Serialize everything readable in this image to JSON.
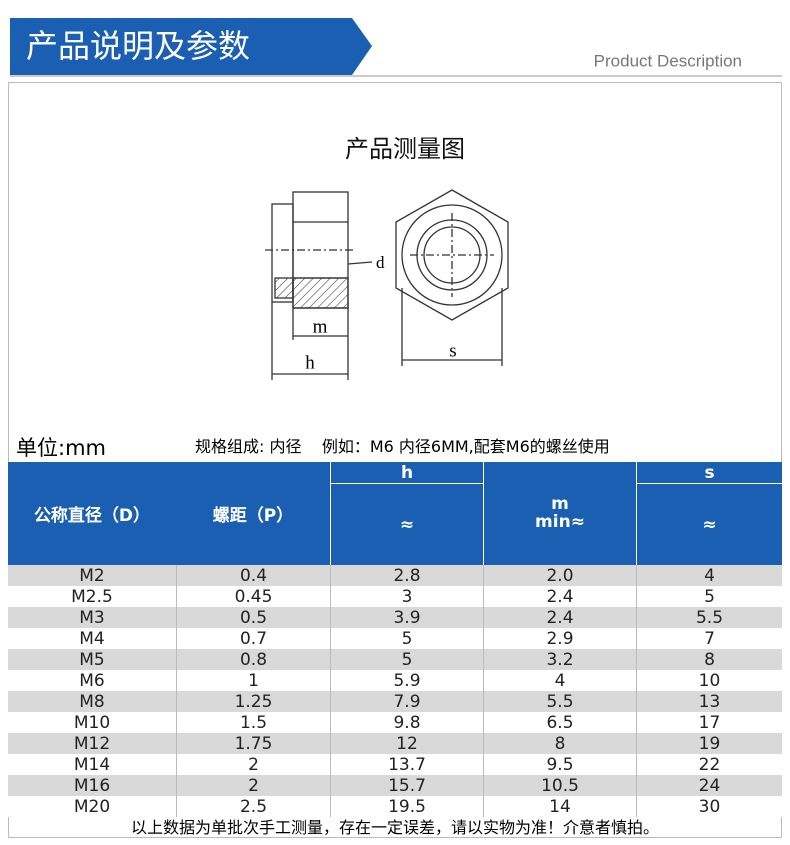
{
  "header": {
    "title": "产品说明及参数",
    "subtitle": "Product Description"
  },
  "diagram": {
    "title": "产品测量图",
    "labels": {
      "d": "d",
      "m": "m",
      "h": "h",
      "s": "s"
    }
  },
  "unit": "单位:mm",
  "spec": "规格组成: 内径    例如：M6 内径6MM,配套M6的螺丝使用",
  "table": {
    "headers": {
      "d": "公称直径（D）",
      "p": "螺距（P）",
      "h": "h",
      "h_sub": "≈",
      "m": "m",
      "m_sub": "min≈",
      "s": "s",
      "s_sub": "≈"
    },
    "rows": [
      [
        "M2",
        "0.4",
        "2.8",
        "2.0",
        "4"
      ],
      [
        "M2.5",
        "0.45",
        "3",
        "2.4",
        "5"
      ],
      [
        "M3",
        "0.5",
        "3.9",
        "2.4",
        "5.5"
      ],
      [
        "M4",
        "0.7",
        "5",
        "2.9",
        "7"
      ],
      [
        "M5",
        "0.8",
        "5",
        "3.2",
        "8"
      ],
      [
        "M6",
        "1",
        "5.9",
        "4",
        "10"
      ],
      [
        "M8",
        "1.25",
        "7.9",
        "5.5",
        "13"
      ],
      [
        "M10",
        "1.5",
        "9.8",
        "6.5",
        "17"
      ],
      [
        "M12",
        "1.75",
        "12",
        "8",
        "19"
      ],
      [
        "M14",
        "2",
        "13.7",
        "9.5",
        "22"
      ],
      [
        "M16",
        "2",
        "15.7",
        "10.5",
        "24"
      ],
      [
        "M20",
        "2.5",
        "19.5",
        "14",
        "30"
      ]
    ]
  },
  "note": "以上数据为单批次手工测量，存在一定误差，请以实物为准！介意者慎拍。"
}
